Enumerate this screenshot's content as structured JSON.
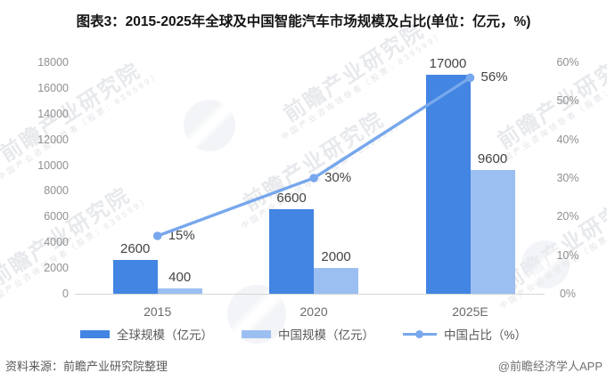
{
  "title": "图表3：2015-2025年全球及中国智能汽车市场规模及占比(单位：亿元，%)",
  "footer": {
    "source": "资料来源：前瞻产业研究院整理",
    "credit": "@前瞻经济学人APP"
  },
  "watermark": {
    "brand": "前瞻产业研究院",
    "sub": "中国产业咨询领导者（股票：839599）"
  },
  "colors": {
    "bar_global": "#4285E2",
    "bar_china": "#9BBFF0",
    "line_share": "#77A7EC",
    "axis_line": "#d6d6d6",
    "tick_text": "#909090",
    "label_text": "#444444"
  },
  "chart_data": {
    "type": "bar",
    "subtype": "grouped bars with line overlay (dual axis)",
    "categories": [
      "2015",
      "2020",
      "2025E"
    ],
    "series": [
      {
        "name": "全球规模（亿元）",
        "type": "bar",
        "axis": "left",
        "values": [
          2600,
          6600,
          17000
        ],
        "color": "#4285E2"
      },
      {
        "name": "中国规模（亿元）",
        "type": "bar",
        "axis": "left",
        "values": [
          400,
          2000,
          9600
        ],
        "color": "#9BBFF0"
      },
      {
        "name": "中国占比（%）",
        "type": "line",
        "axis": "right",
        "values": [
          15,
          30,
          56
        ],
        "value_labels": [
          "15%",
          "30%",
          "56%"
        ],
        "color": "#77A7EC"
      }
    ],
    "y_left": {
      "min": 0,
      "max": 18000,
      "step": 2000
    },
    "y_right": {
      "min": 0,
      "max": 60,
      "step": 10,
      "suffix": "%"
    },
    "grid": false,
    "legend_position": "bottom"
  }
}
